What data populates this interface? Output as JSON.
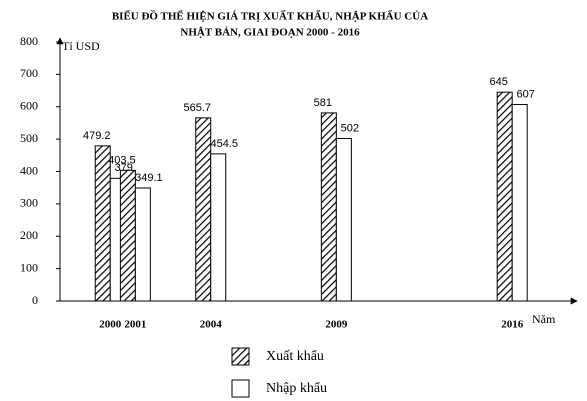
{
  "chart_data": {
    "type": "bar",
    "title": [
      "BIỂU ĐỒ THỂ HIỆN GIÁ TRỊ XUẤT KHẨU, NHẬP KHẨU CỦA",
      "NHẬT BẢN, GIAI ĐOẠN 2000 - 2016"
    ],
    "y_label": "Tỉ USD",
    "x_label": "Năm",
    "x": [
      2000,
      2001,
      2004,
      2009,
      2016
    ],
    "xlim": [
      1998,
      2018.5
    ],
    "ylim": [
      0,
      800
    ],
    "yticks": [
      0,
      100,
      200,
      300,
      400,
      500,
      600,
      700,
      800
    ],
    "series": [
      {
        "name": "Xuất khẩu",
        "color": "#000000",
        "hatch": true,
        "values": [
          479.2,
          403.5,
          565.7,
          581,
          645
        ]
      },
      {
        "name": "Nhập khẩu",
        "color": "#ffffff",
        "hatch": false,
        "values": [
          379,
          349.1,
          454.5,
          502,
          607
        ]
      }
    ],
    "grid": false
  }
}
